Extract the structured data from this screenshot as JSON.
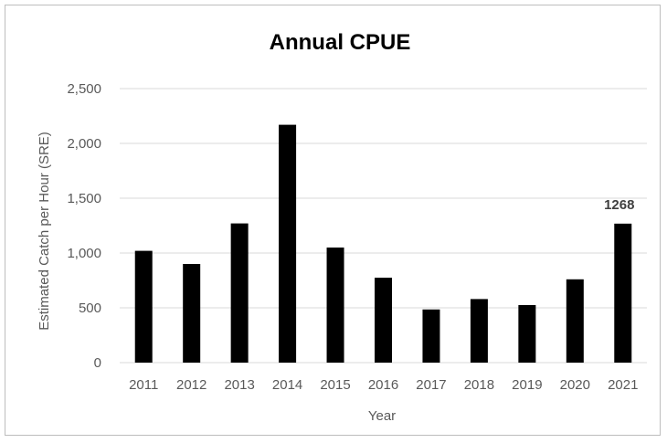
{
  "chart_data": {
    "type": "bar",
    "title": "Annual CPUE",
    "xlabel": "Year",
    "ylabel": "Estimated Catch per Hour (SRE)",
    "categories": [
      "2011",
      "2012",
      "2013",
      "2014",
      "2015",
      "2016",
      "2017",
      "2018",
      "2019",
      "2020",
      "2021"
    ],
    "values": [
      1020,
      900,
      1270,
      2170,
      1050,
      775,
      485,
      580,
      525,
      760,
      1268
    ],
    "ylim": [
      0,
      2500
    ],
    "yticks": [
      0,
      500,
      1000,
      1500,
      2000,
      2500
    ],
    "ytick_labels": [
      "0",
      "500",
      "1,000",
      "1,500",
      "2,000",
      "2,500"
    ],
    "grid": true,
    "legend": "none",
    "annotations": [
      {
        "category": "2021",
        "text": "1268"
      }
    ],
    "colors": {
      "bar": "#000000",
      "grid": "#d9d9d9",
      "text": "#595959"
    }
  }
}
